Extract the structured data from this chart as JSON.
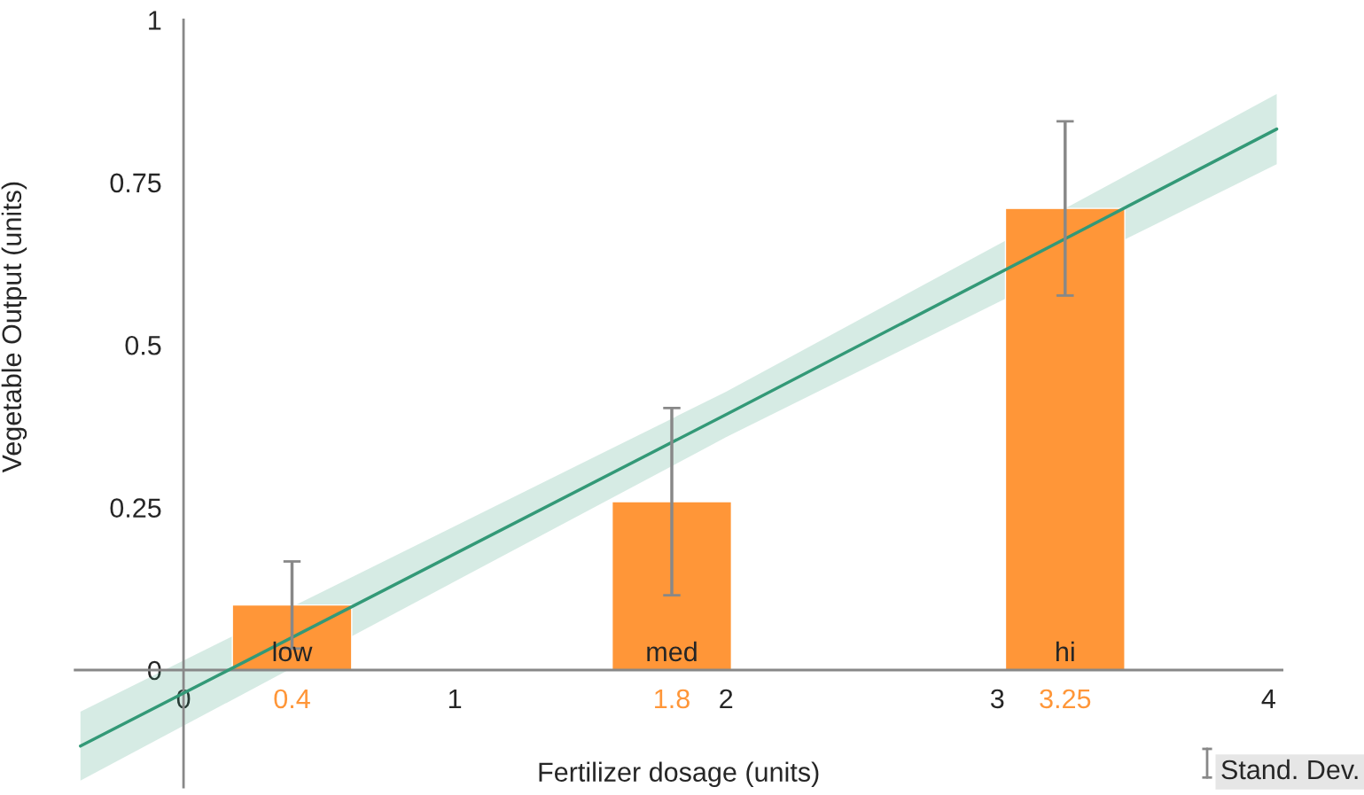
{
  "chart_data": {
    "type": "bar",
    "xlabel": "Fertilizer dosage (units)",
    "ylabel": "Vegetable Output (units)",
    "series": [
      {
        "color": "#ff9638",
        "x": [
          0.4,
          1.8,
          3.25
        ],
        "values": [
          0.1,
          0.259,
          0.71
        ],
        "errors": [
          0.067,
          0.144,
          0.134
        ]
      },
      {
        "type": "line",
        "color": "#339977",
        "x": [
          -0.38,
          2,
          4.03
        ],
        "values": [
          -0.117,
          0.393,
          0.832
        ],
        "lower": [
          -0.17,
          0.358,
          0.778
        ],
        "upper": [
          -0.064,
          0.428,
          0.886
        ]
      }
    ],
    "xlim": [
      -0.4,
      4.05
    ],
    "ylim": [
      -0.18,
      1
    ],
    "xticks": [
      0,
      0.4,
      1,
      1.8,
      2,
      3,
      3.25,
      4
    ],
    "yticks": [
      0,
      0.25,
      0.5,
      0.75,
      1
    ],
    "grid": false,
    "annotations": [
      {
        "text": "low",
        "x": 0.4,
        "y": 0
      },
      {
        "text": "med",
        "x": 1.8,
        "y": 0
      },
      {
        "text": "hi",
        "x": 3.25,
        "y": 0
      },
      "Stand. Dev."
    ]
  }
}
